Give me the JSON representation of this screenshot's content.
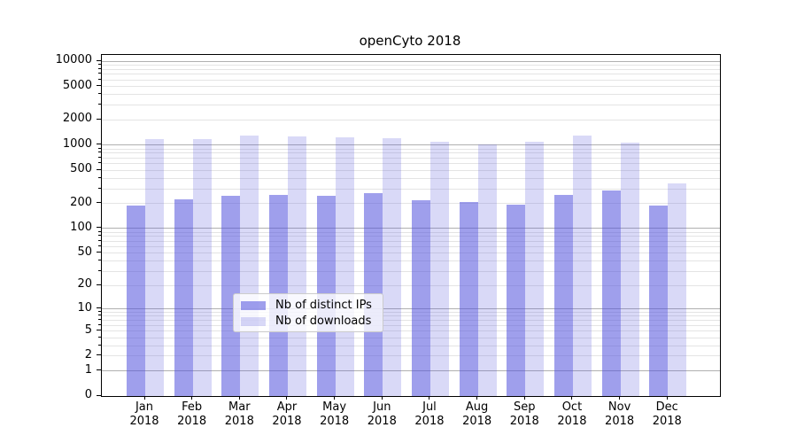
{
  "chart_data": {
    "type": "bar",
    "title": "openCyto 2018",
    "yscale": "log1p",
    "ylim": [
      0,
      12000
    ],
    "grid": "horizontal, log decades with minors",
    "legend_position": "lower center",
    "x_months": [
      "Jan",
      "Feb",
      "Mar",
      "Apr",
      "May",
      "Jun",
      "Jul",
      "Aug",
      "Sep",
      "Oct",
      "Nov",
      "Dec"
    ],
    "x_year": "2018",
    "yticks": [
      10000,
      5000,
      2000,
      1000,
      500,
      200,
      100,
      50,
      20,
      10,
      5,
      2,
      1,
      0
    ],
    "grid_major_values": [
      1,
      10,
      100,
      1000,
      10000
    ],
    "grid_minor_decades": [
      1,
      10,
      100,
      1000
    ],
    "grid_minor_subs": [
      2,
      3,
      4,
      5,
      6,
      7,
      8,
      9
    ],
    "series": [
      {
        "name": "Nb of distinct IPs",
        "color": "#9f9fec",
        "fill": "rgba(80,80,220,0.55)",
        "values": [
          190,
          225,
          248,
          253,
          248,
          265,
          218,
          208,
          193,
          255,
          283,
          190
        ]
      },
      {
        "name": "Nb of downloads",
        "color": "#d8d8f7",
        "fill": "rgba(80,80,220,0.22)",
        "values": [
          1170,
          1175,
          1300,
          1255,
          1235,
          1210,
          1090,
          1015,
          1090,
          1300,
          1060,
          345
        ]
      }
    ],
    "colors": {
      "grid_major": "#b0b0b0",
      "grid_minor": "#e4e4e4",
      "spine": "#000000",
      "text": "#000000",
      "background": "#ffffff"
    }
  }
}
